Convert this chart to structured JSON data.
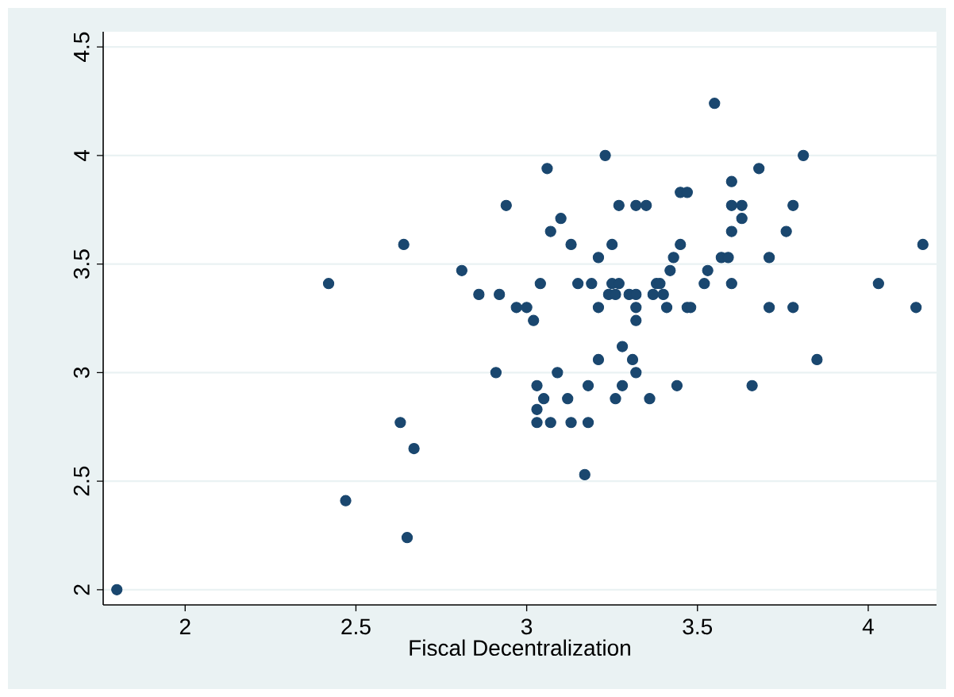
{
  "chart_data": {
    "type": "scatter",
    "xlabel": "Fiscal Decentralization",
    "x": [
      1.8,
      2.42,
      2.47,
      2.63,
      2.67,
      2.65,
      2.64,
      2.81,
      2.86,
      2.92,
      2.91,
      2.94,
      2.97,
      3.0,
      3.02,
      3.04,
      3.06,
      3.07,
      3.1,
      3.13,
      3.15,
      3.19,
      3.21,
      3.21,
      3.23,
      3.25,
      3.25,
      3.27,
      3.24,
      3.26,
      3.27,
      3.32,
      3.35,
      3.3,
      3.32,
      3.32,
      3.32,
      3.28,
      3.31,
      3.21,
      3.37,
      3.4,
      3.38,
      3.39,
      3.41,
      3.42,
      3.43,
      3.45,
      3.45,
      3.47,
      3.47,
      3.48,
      3.52,
      3.53,
      3.55,
      3.57,
      3.59,
      3.6,
      3.6,
      3.6,
      3.6,
      3.63,
      3.63,
      3.68,
      3.71,
      3.71,
      3.76,
      3.78,
      3.78,
      3.81,
      3.85,
      4.03,
      4.14,
      4.16,
      3.03,
      3.05,
      3.03,
      3.03,
      3.07,
      3.09,
      3.12,
      3.13,
      3.18,
      3.18,
      3.17,
      3.32,
      3.28,
      3.26,
      3.36,
      3.44,
      3.66
    ],
    "values": [
      2.0,
      3.41,
      2.41,
      2.77,
      2.65,
      2.24,
      3.59,
      3.47,
      3.36,
      3.36,
      3.0,
      3.77,
      3.3,
      3.3,
      3.24,
      3.41,
      3.94,
      3.65,
      3.71,
      3.59,
      3.41,
      3.41,
      3.53,
      3.3,
      4.0,
      3.59,
      3.41,
      3.41,
      3.36,
      3.36,
      3.77,
      3.77,
      3.77,
      3.36,
      3.36,
      3.3,
      3.24,
      3.12,
      3.06,
      3.06,
      3.36,
      3.36,
      3.41,
      3.41,
      3.3,
      3.47,
      3.53,
      3.59,
      3.83,
      3.83,
      3.3,
      3.3,
      3.41,
      3.47,
      4.24,
      3.53,
      3.53,
      3.41,
      3.65,
      3.88,
      3.77,
      3.77,
      3.71,
      3.94,
      3.53,
      3.3,
      3.65,
      3.77,
      3.3,
      4.0,
      3.06,
      3.41,
      3.3,
      3.59,
      2.94,
      2.88,
      2.83,
      2.77,
      2.77,
      3.0,
      2.88,
      2.77,
      2.77,
      2.94,
      2.53,
      3.0,
      2.94,
      2.88,
      2.88,
      2.94,
      2.94
    ],
    "color": "#1a476f",
    "grid": "y",
    "xlim": [
      1.76,
      4.2
    ],
    "ylim": [
      1.93,
      4.57
    ],
    "xticks": [
      2,
      2.5,
      3,
      3.5,
      4
    ],
    "yticks": [
      2,
      2.5,
      3,
      3.5,
      4,
      4.5
    ]
  }
}
